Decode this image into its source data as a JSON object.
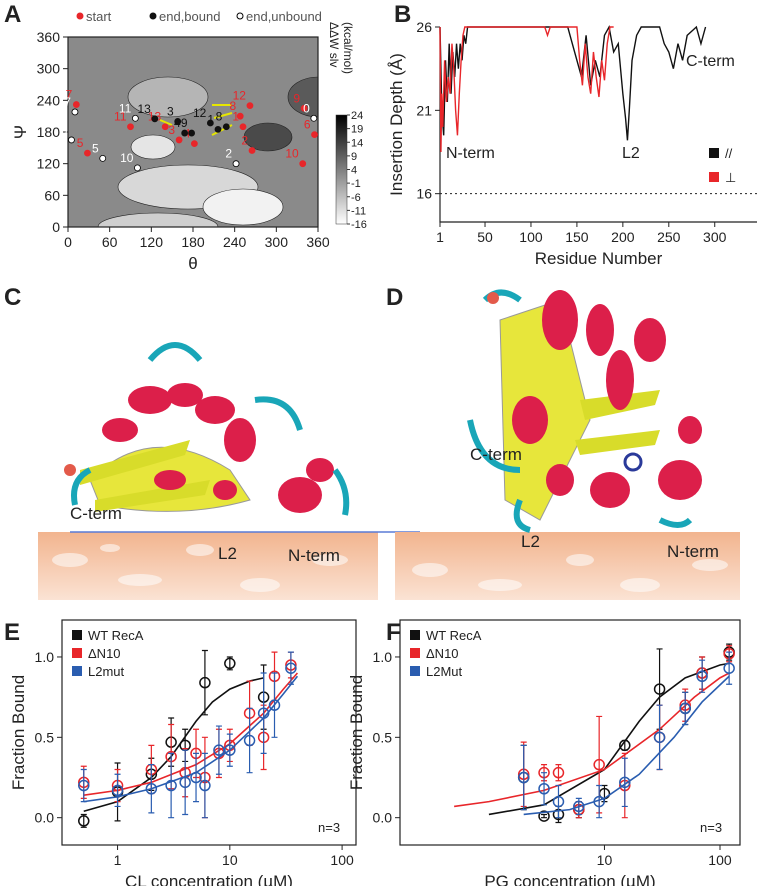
{
  "chart_data": [
    {
      "type": "scatter",
      "panel": "A",
      "xlabel": "θ",
      "ylabel": "Ψ",
      "xlim": [
        0,
        360
      ],
      "ylim": [
        0,
        360
      ],
      "xticks": [
        0,
        60,
        120,
        180,
        240,
        300,
        360
      ],
      "yticks": [
        0,
        60,
        120,
        180,
        240,
        300,
        360
      ],
      "legend": "top",
      "colorbar": {
        "label": [
          "ΔΔW slv",
          "(kcal/mol)"
        ],
        "lim": [
          -16,
          24
        ],
        "ticks": [
          24,
          19,
          14,
          9,
          4,
          -1,
          -6,
          -11,
          -16
        ]
      },
      "series": [
        {
          "name": "start",
          "color": "#e8262a",
          "edgecolor": "#e8262a",
          "marker": "filled",
          "x": [
            252,
            265,
            160,
            182,
            28,
            355,
            12,
            248,
            340,
            338,
            90,
            262,
            140
          ],
          "values": [
            190,
            145,
            165,
            158,
            140,
            175,
            232,
            210,
            225,
            120,
            190,
            230,
            190
          ],
          "labels": [
            "1",
            "2",
            "3",
            "4",
            "5",
            "6",
            "7",
            "8",
            "9",
            "10",
            "11",
            "12",
            "13"
          ]
        },
        {
          "name": "end,bound",
          "color": "#111111",
          "edgecolor": "#111111",
          "marker": "filled",
          "x": [
            125,
            158,
            205,
            168,
            178,
            228,
            216
          ],
          "values": [
            205,
            200,
            197,
            178,
            178,
            190,
            185
          ],
          "labels": [
            "13",
            "3",
            "12",
            "4",
            "9",
            "8",
            "1"
          ]
        },
        {
          "name": "end,unbound",
          "color": "#ffffff",
          "edgecolor": "#000000",
          "marker": "filled",
          "x": [
            10,
            5,
            50,
            100,
            242,
            354,
            97
          ],
          "values": [
            218,
            165,
            130,
            112,
            120,
            206,
            206
          ],
          "labels": [
            "7",
            "6",
            "5",
            "10",
            "2",
            "0",
            "11"
          ]
        }
      ]
    },
    {
      "type": "line",
      "panel": "B",
      "xlabel": "Residue Number",
      "ylabel": "Insertion Depth (Å)",
      "xlim": [
        1,
        346
      ],
      "ylim": [
        14.3,
        26
      ],
      "xticks": [
        1,
        50,
        100,
        150,
        200,
        250,
        300
      ],
      "yticks": [
        16,
        21,
        26
      ],
      "reference_line": 16,
      "legend": "lower right",
      "annotations": [
        "N-term",
        "L2",
        "C-term"
      ],
      "series": [
        {
          "name": "//",
          "color": "#111111",
          "x": [
            1,
            3,
            5,
            7,
            9,
            11,
            13,
            15,
            17,
            19,
            21,
            23,
            25,
            27,
            29,
            31,
            140,
            145,
            150,
            155,
            160,
            165,
            170,
            175,
            180,
            185,
            190,
            195,
            200,
            203,
            205,
            207,
            210,
            215,
            220,
            240,
            245,
            250,
            255,
            260,
            265,
            270,
            280,
            285,
            290
          ],
          "values": [
            26,
            21,
            19.5,
            24,
            21.5,
            25,
            22,
            24.5,
            23,
            25,
            23.5,
            25,
            24,
            25.5,
            25,
            26,
            26,
            25,
            24,
            23,
            25.5,
            22.5,
            24,
            23,
            25.5,
            26,
            24.5,
            25,
            22,
            20.5,
            19.2,
            21,
            24,
            25.5,
            26,
            26,
            25,
            24.5,
            23.5,
            25,
            24,
            25.5,
            26,
            25,
            26
          ]
        },
        {
          "name": "⊥",
          "color": "#e8262a",
          "x": [
            1,
            2,
            3,
            4,
            6,
            8,
            10,
            12,
            14,
            16,
            18,
            20,
            22,
            24,
            26,
            28,
            115,
            118,
            121,
            124,
            150,
            153,
            156,
            159,
            162,
            165,
            168,
            171,
            174,
            177,
            180,
            183,
            186,
            190
          ],
          "values": [
            26,
            18.5,
            22,
            20,
            24,
            21.5,
            23,
            22,
            25,
            23.5,
            21,
            19.5,
            22,
            24,
            25.5,
            26,
            26,
            25.5,
            26,
            26,
            26,
            24,
            22.5,
            25,
            23,
            22,
            24.5,
            23,
            21.8,
            24,
            22.8,
            25,
            26,
            26
          ]
        }
      ]
    },
    {
      "type": "scatter",
      "panel": "E",
      "xlabel": "CL concentration (µM)",
      "ylabel": "Fraction Bound",
      "xscale": "log",
      "xlim": [
        0.32,
        133
      ],
      "ylim": [
        -0.17,
        1.23
      ],
      "xticks": [
        1,
        10,
        100
      ],
      "yticks": [
        {
          "value": 0,
          "label": "0.0"
        },
        0.5,
        {
          "value": 1,
          "label": "1.0"
        }
      ],
      "legend": "upper left",
      "annotations": [
        "n=3"
      ],
      "series": [
        {
          "name": "WT RecA",
          "color": "#111111",
          "marker": "open",
          "x": [
            0.5,
            1,
            2,
            3,
            4,
            6,
            10,
            20
          ],
          "values": [
            -0.02,
            0.16,
            0.27,
            0.47,
            0.45,
            0.84,
            0.96,
            0.75
          ],
          "errors": [
            0.04,
            0.18,
            0.1,
            0.15,
            0.1,
            0.2,
            0.04,
            0.2
          ],
          "fit": {
            "x": [
              0.5,
              1,
              2,
              3,
              5,
              7,
              10,
              15,
              20
            ],
            "values": [
              0.04,
              0.1,
              0.25,
              0.38,
              0.6,
              0.72,
              0.8,
              0.85,
              0.87
            ]
          }
        },
        {
          "name": "ΔN10",
          "color": "#e8262a",
          "marker": "open",
          "x": [
            0.5,
            1,
            2,
            3,
            4,
            5,
            6,
            8,
            10,
            15,
            20,
            25,
            35
          ],
          "values": [
            0.22,
            0.2,
            0.3,
            0.38,
            0.28,
            0.4,
            0.25,
            0.4,
            0.45,
            0.65,
            0.5,
            0.88,
            0.95
          ],
          "errors": [
            0.1,
            0.1,
            0.15,
            0.2,
            0.15,
            0.15,
            0.25,
            0.15,
            0.1,
            0.2,
            0.2,
            0.15,
            0.08
          ],
          "fit": {
            "x": [
              0.5,
              1,
              2,
              5,
              10,
              20,
              30,
              40
            ],
            "values": [
              0.14,
              0.17,
              0.22,
              0.33,
              0.46,
              0.65,
              0.8,
              0.9
            ]
          }
        },
        {
          "name": "L2mut",
          "color": "#2a5db0",
          "marker": "open",
          "x": [
            0.5,
            1,
            2,
            3,
            4,
            5,
            6,
            8,
            10,
            15,
            20,
            25,
            35
          ],
          "values": [
            0.2,
            0.17,
            0.18,
            0.2,
            0.22,
            0.25,
            0.2,
            0.42,
            0.42,
            0.48,
            0.65,
            0.7,
            0.93
          ],
          "errors": [
            0.1,
            0.1,
            0.15,
            0.2,
            0.2,
            0.15,
            0.2,
            0.15,
            0.1,
            0.2,
            0.25,
            0.2,
            0.1
          ],
          "fit": {
            "x": [
              0.5,
              1,
              2,
              5,
              10,
              20,
              30,
              40
            ],
            "values": [
              0.1,
              0.13,
              0.18,
              0.28,
              0.42,
              0.62,
              0.77,
              0.88
            ]
          }
        }
      ]
    },
    {
      "type": "scatter",
      "panel": "F",
      "xlabel": "PG concentration (µM)",
      "ylabel": "Fraction Bound",
      "xscale": "log",
      "xlim": [
        0.17,
        149
      ],
      "ylim": [
        -0.17,
        1.23
      ],
      "xticks": [
        10,
        100
      ],
      "yticks": [
        {
          "value": 0,
          "label": "0.0"
        },
        0.5,
        {
          "value": 1,
          "label": "1.0"
        }
      ],
      "legend": "upper left",
      "annotations": [
        "n=3"
      ],
      "series": [
        {
          "name": "WT RecA",
          "color": "#111111",
          "marker": "open",
          "x": [
            2,
            3,
            4,
            6,
            10,
            15,
            30,
            50,
            70,
            120
          ],
          "values": [
            0.25,
            0.01,
            0.02,
            0.05,
            0.15,
            0.45,
            0.8,
            0.68,
            0.9,
            1.03
          ],
          "errors": [
            0.2,
            0.01,
            0.05,
            0.05,
            0.05,
            0.03,
            0.25,
            0.1,
            0.1,
            0.05
          ],
          "fit": {
            "x": [
              1,
              3,
              10,
              20,
              30,
              50,
              100,
              120
            ],
            "values": [
              0.02,
              0.08,
              0.3,
              0.6,
              0.75,
              0.87,
              0.95,
              0.96
            ]
          }
        },
        {
          "name": "ΔN10",
          "color": "#e8262a",
          "marker": "open",
          "x": [
            2,
            3,
            4,
            6,
            9,
            15,
            30,
            50,
            70,
            120
          ],
          "values": [
            0.27,
            0.28,
            0.28,
            0.05,
            0.33,
            0.2,
            0.5,
            0.7,
            0.9,
            1.02
          ],
          "errors": [
            0.2,
            0.05,
            0.05,
            0.05,
            0.3,
            0.2,
            0.2,
            0.1,
            0.1,
            0.05
          ],
          "fit": {
            "x": [
              0.5,
              1,
              3,
              10,
              30,
              60,
              100,
              120
            ],
            "values": [
              0.07,
              0.1,
              0.17,
              0.3,
              0.55,
              0.75,
              0.87,
              0.9
            ]
          }
        },
        {
          "name": "L2Mut",
          "color": "#2a5db0",
          "marker": "open",
          "x": [
            2,
            3,
            4,
            6,
            9,
            15,
            30,
            50,
            70,
            120
          ],
          "values": [
            0.25,
            0.18,
            0.1,
            0.07,
            0.1,
            0.22,
            0.5,
            0.68,
            0.88,
            0.93
          ],
          "errors": [
            0.2,
            0.1,
            0.1,
            0.05,
            0.1,
            0.15,
            0.2,
            0.1,
            0.1,
            0.1
          ],
          "fit": {
            "x": [
              2,
              5,
              10,
              20,
              40,
              70,
              120
            ],
            "values": [
              0.02,
              0.05,
              0.12,
              0.27,
              0.5,
              0.72,
              0.88
            ]
          }
        }
      ]
    }
  ],
  "images": [
    {
      "panel": "C",
      "labels": [
        "C-term",
        "L2",
        "N-term"
      ]
    },
    {
      "panel": "D",
      "labels": [
        "C-term",
        "L2",
        "N-term"
      ]
    }
  ]
}
